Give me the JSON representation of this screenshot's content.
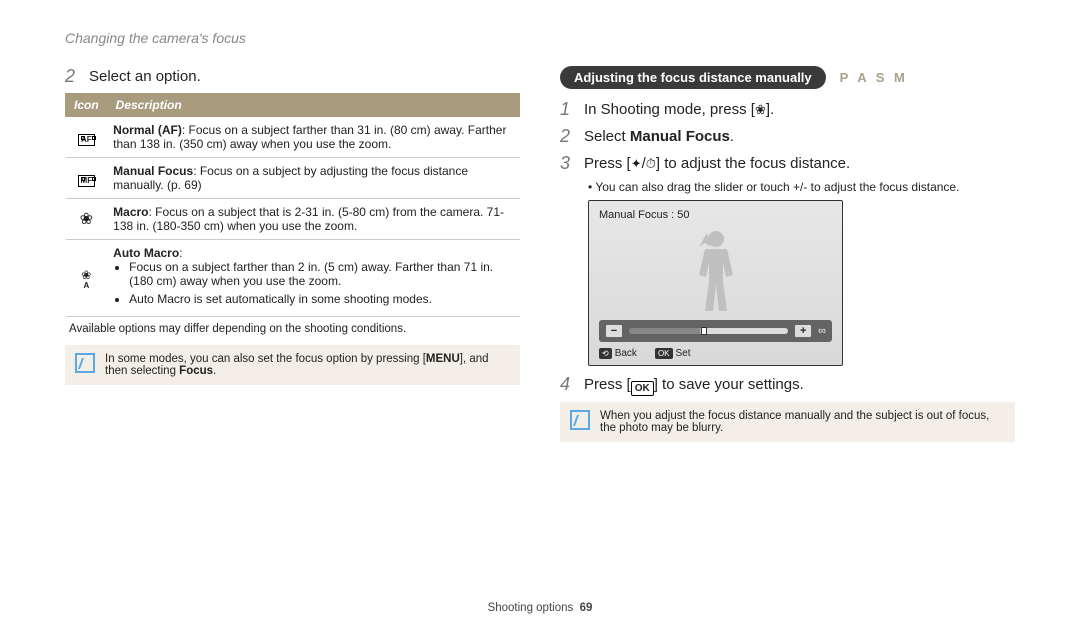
{
  "header": {
    "title": "Changing the camera's focus"
  },
  "left": {
    "step2": {
      "num": "2",
      "text": "Select an option."
    },
    "table": {
      "col_icon": "Icon",
      "col_desc": "Description",
      "rows": [
        {
          "icon_label": "AF",
          "html": "<b>Normal (AF)</b>: Focus on a subject farther than 31 in. (80 cm) away. Farther than 138 in. (350 cm) away when you use the zoom."
        },
        {
          "icon_label": "MF",
          "html": "<b>Manual Focus</b>: Focus on a subject by adjusting the focus distance manually. (p. 69)"
        },
        {
          "icon_label": "macro",
          "html": "<b>Macro</b>: Focus on a subject that is 2-31 in. (5-80 cm) from the camera. 71-138 in. (180-350 cm) when you use the zoom."
        },
        {
          "icon_label": "auto-macro",
          "html": "<b>Auto Macro</b>:<ul class='automacro'><li>Focus on a subject farther than 2 in. (5 cm) away. Farther than 71 in. (180 cm) away when you use the zoom.</li><li>Auto Macro is set automatically in some shooting modes.</li></ul>"
        }
      ]
    },
    "note": "Available options may differ depending on the shooting conditions.",
    "infobox_html": "In some modes, you can also set the focus option by pressing [<b>MENU</b>], and then selecting <b>Focus</b>."
  },
  "right": {
    "pill": "Adjusting the focus distance manually",
    "modes": "P A S M",
    "step1": {
      "num": "1",
      "html": "In Shooting mode, press [<span class='inline-icon'>❀</span>]."
    },
    "step2": {
      "num": "2",
      "html": "Select <b>Manual Focus</b>."
    },
    "step3": {
      "num": "3",
      "html": "Press [<span class='inline-icon'>✦</span>/<span class='inline-icon'>⏱</span>] to adjust the focus distance."
    },
    "step3_sub": "You can also drag the slider or touch +/- to adjust the focus distance.",
    "screen": {
      "mf_label": "Manual Focus : 50",
      "back": "Back",
      "set": "Set",
      "back_key": "⟲",
      "set_key": "OK"
    },
    "step4": {
      "num": "4",
      "html": "Press [<span class='btn-square'>OK</span>] to save your settings."
    },
    "infobox": "When you adjust the focus distance manually and the subject is out of focus, the photo may be blurry."
  },
  "footer": {
    "section": "Shooting options",
    "page": "69"
  }
}
